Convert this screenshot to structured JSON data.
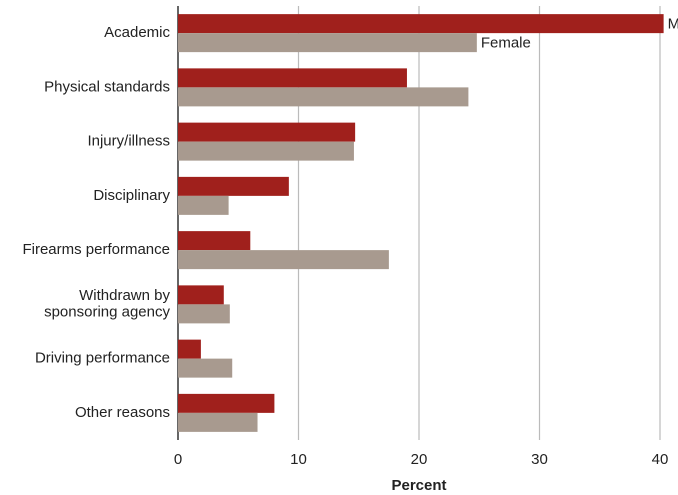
{
  "chart_data": {
    "type": "hbar",
    "xlabel": "Percent",
    "categories": [
      "Academic",
      "Physical standards",
      "Injury/illness",
      "Disciplinary",
      "Firearms performance",
      "Withdrawn by\nsponsoring agency",
      "Driving performance",
      "Other reasons"
    ],
    "series": [
      {
        "name": "Male",
        "color": "#a0201c",
        "values": [
          40.3,
          19.0,
          14.7,
          9.2,
          6.0,
          3.8,
          1.9,
          8.0
        ]
      },
      {
        "name": "Female",
        "color": "#a89a8f",
        "values": [
          24.8,
          24.1,
          14.6,
          4.2,
          17.5,
          4.3,
          4.5,
          6.6
        ]
      }
    ],
    "xlim": [
      0,
      40
    ],
    "xticks": [
      0,
      10,
      20,
      30,
      40
    ],
    "grid": true
  }
}
